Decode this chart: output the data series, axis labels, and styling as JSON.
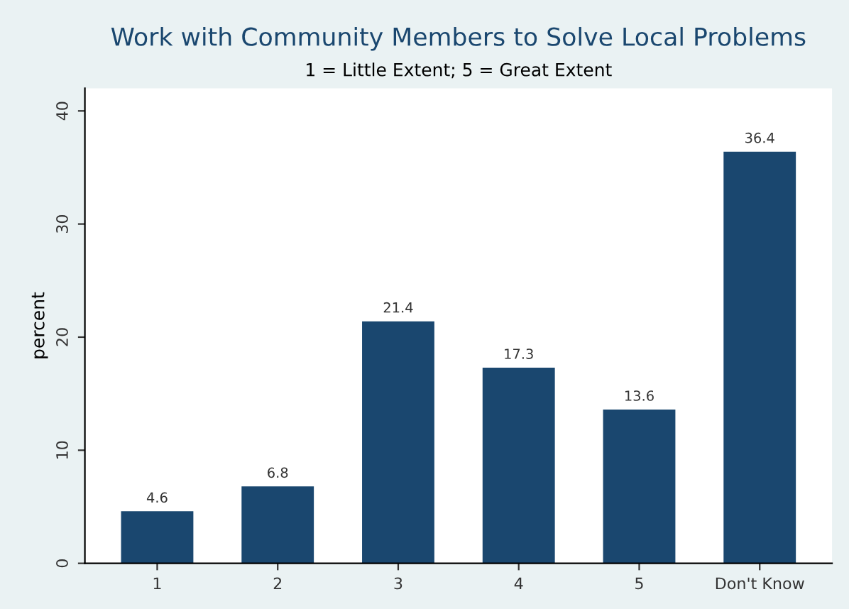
{
  "chart_data": {
    "type": "bar",
    "title": "Work with Community Members to Solve Local Problems",
    "subtitle": "1 = Little Extent; 5 = Great Extent",
    "ylabel": "percent",
    "categories": [
      "1",
      "2",
      "3",
      "4",
      "5",
      "Don't Know"
    ],
    "values": [
      4.6,
      6.8,
      21.4,
      17.3,
      13.6,
      36.4
    ],
    "color": "#1a476f",
    "ylim": [
      0,
      42
    ],
    "yticks": [
      0,
      10,
      20,
      30,
      40
    ],
    "grid": false,
    "data_labels": true
  }
}
